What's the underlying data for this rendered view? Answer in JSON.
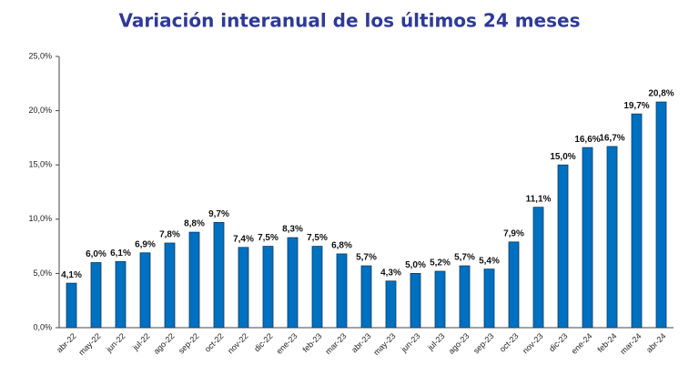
{
  "chart_data": {
    "type": "bar",
    "title": "Variación interanual de los últimos 24 meses",
    "categories": [
      "abr-22",
      "may-22",
      "jun-22",
      "jul-22",
      "ago-22",
      "sep-22",
      "oct-22",
      "nov-22",
      "dic-22",
      "ene-23",
      "feb-23",
      "mar-23",
      "abr-23",
      "may-23",
      "jun-23",
      "jul-23",
      "ago-23",
      "sep-23",
      "oct-23",
      "nov-23",
      "dic-23",
      "ene-24",
      "feb-24",
      "mar-24",
      "abr-24"
    ],
    "values": [
      4.1,
      6.0,
      6.1,
      6.9,
      7.8,
      8.8,
      9.7,
      7.4,
      7.5,
      8.3,
      7.5,
      6.8,
      5.7,
      4.3,
      5.0,
      5.2,
      5.7,
      5.4,
      7.9,
      11.1,
      15.0,
      16.6,
      16.7,
      19.7,
      20.8
    ],
    "value_labels": [
      "4,1%",
      "6,0%",
      "6,1%",
      "6,9%",
      "7,8%",
      "8,8%",
      "9,7%",
      "7,4%",
      "7,5%",
      "8,3%",
      "7,5%",
      "6,8%",
      "5,7%",
      "4,3%",
      "5,0%",
      "5,2%",
      "5,7%",
      "5,4%",
      "7,9%",
      "11,1%",
      "15,0%",
      "16,6%",
      "16,7%",
      "19,7%",
      "20,8%"
    ],
    "color": "#0070c0",
    "ylim": [
      0,
      25
    ],
    "yticks": [
      {
        "value": 0,
        "label": "0,0%"
      },
      {
        "value": 5,
        "label": "5,0%"
      },
      {
        "value": 10,
        "label": "10,0%"
      },
      {
        "value": 15,
        "label": "15,0%"
      },
      {
        "value": 20,
        "label": "20,0%"
      },
      {
        "value": 25,
        "label": "25,0%"
      }
    ],
    "grid": false
  }
}
